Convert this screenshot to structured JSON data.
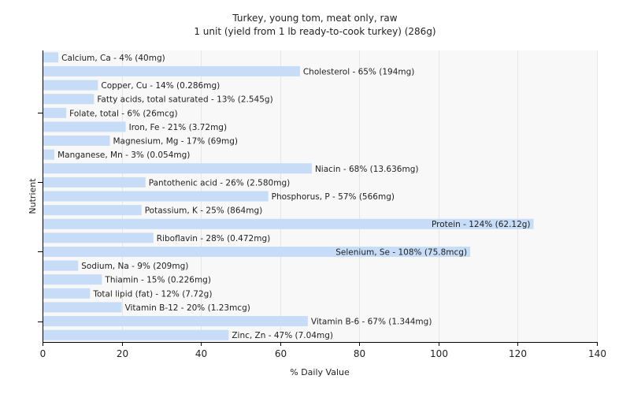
{
  "chart_data": {
    "type": "bar",
    "orientation": "horizontal",
    "title": "Turkey, young tom, meat only, raw",
    "subtitle": "1 unit (yield from 1 lb ready-to-cook turkey) (286g)",
    "xlabel": "% Daily Value",
    "ylabel": "Nutrient",
    "xlim": [
      0,
      140
    ],
    "xticks": [
      0,
      20,
      40,
      60,
      80,
      100,
      120,
      140
    ],
    "grid": true,
    "legend": "none",
    "bar_color": "#c6dcf7",
    "grid_color": "#e6e6e6",
    "background_color": "#f8f8f8",
    "categories": [
      "Calcium, Ca",
      "Cholesterol",
      "Copper, Cu",
      "Fatty acids, total saturated",
      "Folate, total",
      "Iron, Fe",
      "Magnesium, Mg",
      "Manganese, Mn",
      "Niacin",
      "Pantothenic acid",
      "Phosphorus, P",
      "Potassium, K",
      "Protein",
      "Riboflavin",
      "Selenium, Se",
      "Sodium, Na",
      "Thiamin",
      "Total lipid (fat)",
      "Vitamin B-12",
      "Vitamin B-6",
      "Zinc, Zn"
    ],
    "values": [
      4,
      65,
      14,
      13,
      6,
      21,
      17,
      3,
      68,
      26,
      57,
      25,
      124,
      28,
      108,
      9,
      15,
      12,
      20,
      67,
      47
    ],
    "labels": [
      "Calcium, Ca - 4% (40mg)",
      "Cholesterol - 65% (194mg)",
      "Copper, Cu - 14% (0.286mg)",
      "Fatty acids, total saturated - 13% (2.545g)",
      "Folate, total - 6% (26mcg)",
      "Iron, Fe - 21% (3.72mg)",
      "Magnesium, Mg - 17% (69mg)",
      "Manganese, Mn - 3% (0.054mg)",
      "Niacin - 68% (13.636mg)",
      "Pantothenic acid - 26% (2.580mg)",
      "Phosphorus, P - 57% (566mg)",
      "Potassium, K - 25% (864mg)",
      "Protein - 124% (62.12g)",
      "Riboflavin - 28% (0.472mg)",
      "Selenium, Se - 108% (75.8mcg)",
      "Sodium, Na - 9% (209mg)",
      "Thiamin - 15% (0.226mg)",
      "Total lipid (fat) - 12% (7.72g)",
      "Vitamin B-12 - 20% (1.23mcg)",
      "Vitamin B-6 - 67% (1.344mg)",
      "Zinc, Zn - 47% (7.04mg)"
    ]
  }
}
